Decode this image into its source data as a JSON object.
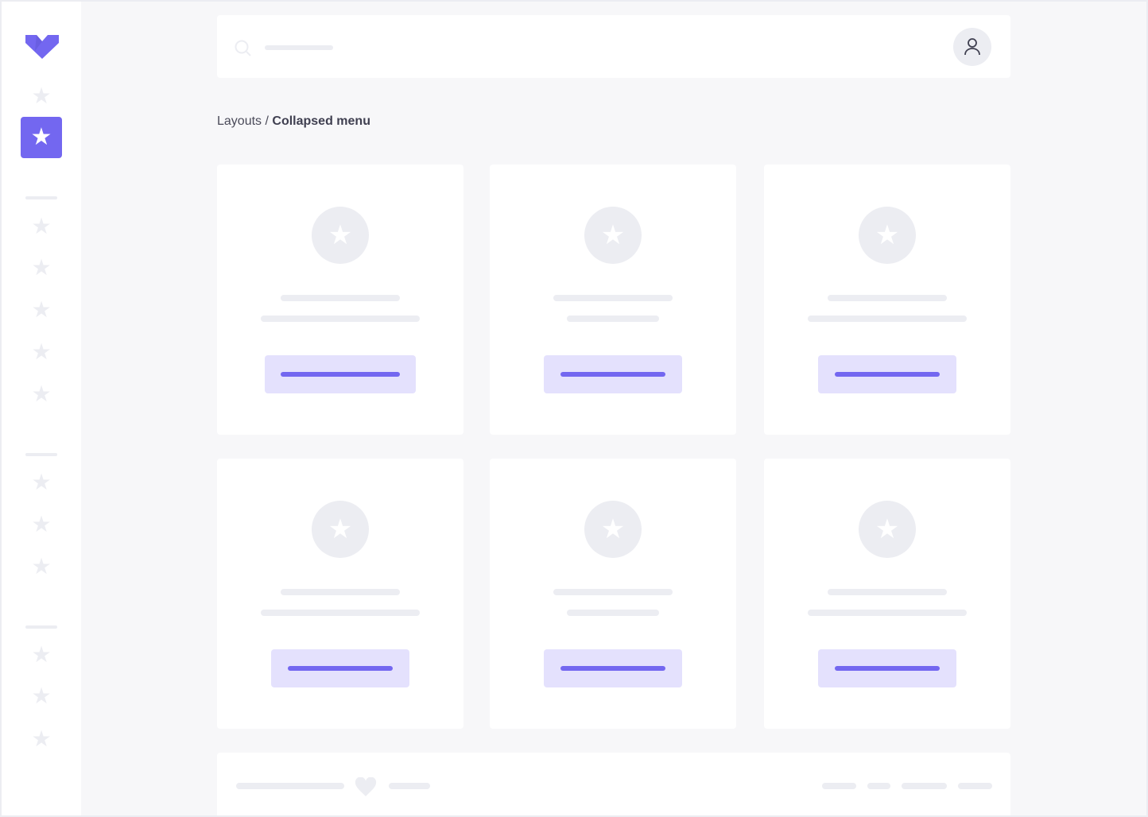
{
  "colors": {
    "accent": "#7367f0",
    "accent_light": "#e4e1fd",
    "placeholder": "#ecedf2",
    "background": "#f7f7f9"
  },
  "sidebar": {
    "logo_icon": "v-logo",
    "active_index": 1,
    "items": [
      "star-icon",
      "star-icon",
      "star-icon",
      "star-icon",
      "star-icon",
      "star-icon",
      "star-icon",
      "star-icon",
      "star-icon",
      "star-icon",
      "star-icon",
      "star-icon",
      "star-icon"
    ]
  },
  "topbar": {
    "search_icon": "search-icon",
    "user_icon": "user-icon"
  },
  "breadcrumb": {
    "parent": "Layouts",
    "separator": " / ",
    "current": "Collapsed menu"
  },
  "cards": [
    {
      "icon": "star-icon"
    },
    {
      "icon": "star-icon"
    },
    {
      "icon": "star-icon"
    },
    {
      "icon": "star-icon"
    },
    {
      "icon": "star-icon"
    },
    {
      "icon": "star-icon"
    }
  ],
  "footer": {
    "icon": "heart-icon"
  }
}
